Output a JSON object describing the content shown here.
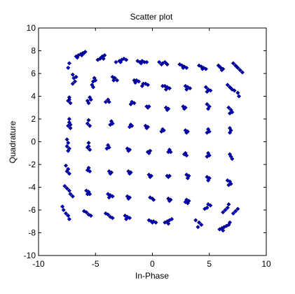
{
  "chart_data": {
    "type": "scatter",
    "title": "Scatter plot",
    "xlabel": "In-Phase",
    "ylabel": "Quadrature",
    "xlim": [
      -10,
      10
    ],
    "ylim": [
      -10,
      10
    ],
    "xticks": [
      -10,
      -5,
      0,
      5,
      10
    ],
    "yticks": [
      -10,
      -8,
      -6,
      -4,
      -2,
      0,
      2,
      4,
      6,
      8,
      10
    ],
    "grid": false,
    "legend": "none",
    "marker": "diamond",
    "marker_color": "#0000CC",
    "marker_edge_color": "#000055",
    "clusters_note_free": true,
    "series": [
      {
        "points": [
          [
            -6.7,
            7.5
          ],
          [
            -6.5,
            7.6
          ],
          [
            -6.3,
            7.7
          ],
          [
            -6.1,
            7.8
          ],
          [
            -5.9,
            7.9
          ],
          [
            -6.6,
            7.4
          ],
          [
            -6.2,
            7.6
          ],
          [
            -6.0,
            7.8
          ],
          [
            -4.8,
            7.2
          ],
          [
            -4.6,
            7.3
          ],
          [
            -4.4,
            7.5
          ],
          [
            -4.2,
            7.6
          ],
          [
            -4.5,
            7.4
          ],
          [
            -4.3,
            7.3
          ],
          [
            -3.2,
            7.0
          ],
          [
            -2.9,
            7.1
          ],
          [
            -2.7,
            7.2
          ],
          [
            -2.5,
            7.3
          ],
          [
            -2.3,
            7.2
          ],
          [
            -2.8,
            7.0
          ],
          [
            -1.3,
            7.1
          ],
          [
            -1.1,
            7.0
          ],
          [
            -0.9,
            7.1
          ],
          [
            -0.7,
            7.0
          ],
          [
            -0.5,
            7.0
          ],
          [
            -1.0,
            6.9
          ],
          [
            0.6,
            7.0
          ],
          [
            0.9,
            6.9
          ],
          [
            1.1,
            7.0
          ],
          [
            1.3,
            6.8
          ],
          [
            0.8,
            6.8
          ],
          [
            1.2,
            6.9
          ],
          [
            2.4,
            6.8
          ],
          [
            2.6,
            6.7
          ],
          [
            2.8,
            6.6
          ],
          [
            3.0,
            6.5
          ],
          [
            2.7,
            6.5
          ],
          [
            4.1,
            6.7
          ],
          [
            4.3,
            6.6
          ],
          [
            4.5,
            6.5
          ],
          [
            4.7,
            6.4
          ],
          [
            4.4,
            6.4
          ],
          [
            5.8,
            6.7
          ],
          [
            6.0,
            6.5
          ],
          [
            6.2,
            6.4
          ],
          [
            6.1,
            6.3
          ],
          [
            5.9,
            6.6
          ],
          [
            7.1,
            6.9
          ],
          [
            7.3,
            6.7
          ],
          [
            7.5,
            6.5
          ],
          [
            7.7,
            6.3
          ],
          [
            7.9,
            6.1
          ],
          [
            7.4,
            6.6
          ],
          [
            -7.3,
            6.9
          ],
          [
            -7.4,
            6.5
          ],
          [
            -7.0,
            5.9
          ],
          [
            -6.9,
            5.6
          ],
          [
            -6.8,
            5.3
          ],
          [
            -7.0,
            5.1
          ],
          [
            -6.7,
            5.7
          ],
          [
            -5.1,
            5.6
          ],
          [
            -5.2,
            5.3
          ],
          [
            -5.3,
            5.0
          ],
          [
            -5.2,
            4.8
          ],
          [
            -5.0,
            5.4
          ],
          [
            -3.5,
            5.7
          ],
          [
            -3.3,
            5.6
          ],
          [
            -3.1,
            5.4
          ],
          [
            -3.4,
            5.4
          ],
          [
            -1.6,
            5.4
          ],
          [
            -1.4,
            5.4
          ],
          [
            -1.2,
            5.3
          ],
          [
            -1.5,
            5.2
          ],
          [
            -0.8,
            5.1
          ],
          [
            -0.6,
            5.1
          ],
          [
            -0.4,
            5.0
          ],
          [
            -0.9,
            4.9
          ],
          [
            0.9,
            4.9
          ],
          [
            1.1,
            4.9
          ],
          [
            1.3,
            4.8
          ],
          [
            1.5,
            4.7
          ],
          [
            1.2,
            4.6
          ],
          [
            2.9,
            4.9
          ],
          [
            3.1,
            4.8
          ],
          [
            3.3,
            4.7
          ],
          [
            3.0,
            4.6
          ],
          [
            4.7,
            4.8
          ],
          [
            4.9,
            4.6
          ],
          [
            5.1,
            4.5
          ],
          [
            4.8,
            4.4
          ],
          [
            6.6,
            5.0
          ],
          [
            6.8,
            4.8
          ],
          [
            7.0,
            4.6
          ],
          [
            7.2,
            4.5
          ],
          [
            6.9,
            4.7
          ],
          [
            7.5,
            4.3
          ],
          [
            7.6,
            4.0
          ],
          [
            -7.3,
            3.9
          ],
          [
            -7.4,
            3.6
          ],
          [
            -7.2,
            3.4
          ],
          [
            -7.3,
            3.7
          ],
          [
            -5.5,
            3.9
          ],
          [
            -5.7,
            3.6
          ],
          [
            -5.6,
            3.4
          ],
          [
            -5.4,
            3.7
          ],
          [
            -3.9,
            3.7
          ],
          [
            -4.1,
            3.5
          ],
          [
            -3.8,
            3.5
          ],
          [
            -1.8,
            3.5
          ],
          [
            -1.6,
            3.4
          ],
          [
            -1.9,
            3.3
          ],
          [
            -0.5,
            3.1
          ],
          [
            -0.3,
            3.1
          ],
          [
            -0.4,
            3.0
          ],
          [
            1.2,
            3.0
          ],
          [
            1.4,
            2.9
          ],
          [
            1.3,
            2.8
          ],
          [
            2.7,
            3.1
          ],
          [
            2.9,
            3.0
          ],
          [
            2.8,
            2.9
          ],
          [
            4.8,
            3.3
          ],
          [
            5.0,
            3.1
          ],
          [
            4.9,
            2.9
          ],
          [
            6.7,
            3.0
          ],
          [
            6.9,
            2.8
          ],
          [
            7.0,
            2.6
          ],
          [
            6.8,
            2.5
          ],
          [
            -7.3,
            2.0
          ],
          [
            -7.3,
            1.7
          ],
          [
            -7.2,
            1.5
          ],
          [
            -7.4,
            1.4
          ],
          [
            -7.2,
            1.2
          ],
          [
            -5.6,
            1.9
          ],
          [
            -5.7,
            1.6
          ],
          [
            -5.5,
            1.4
          ],
          [
            -3.6,
            1.8
          ],
          [
            -3.7,
            1.5
          ],
          [
            -3.5,
            1.6
          ],
          [
            -1.9,
            1.5
          ],
          [
            -1.8,
            1.4
          ],
          [
            -2.0,
            1.3
          ],
          [
            -0.6,
            1.4
          ],
          [
            -0.4,
            1.3
          ],
          [
            -0.5,
            1.2
          ],
          [
            0.9,
            1.1
          ],
          [
            1.0,
            1.0
          ],
          [
            0.8,
            0.9
          ],
          [
            2.9,
            1.0
          ],
          [
            3.0,
            0.8
          ],
          [
            3.1,
            0.9
          ],
          [
            4.9,
            1.1
          ],
          [
            5.0,
            0.9
          ],
          [
            4.8,
            0.8
          ],
          [
            6.8,
            1.2
          ],
          [
            6.9,
            1.0
          ],
          [
            6.8,
            0.8
          ],
          [
            -7.5,
            0.2
          ],
          [
            -7.4,
            -0.1
          ],
          [
            -7.5,
            -0.4
          ],
          [
            -7.3,
            -0.6
          ],
          [
            -7.4,
            -0.8
          ],
          [
            -5.6,
            -0.1
          ],
          [
            -5.6,
            -0.4
          ],
          [
            -5.5,
            -0.7
          ],
          [
            -5.7,
            -0.5
          ],
          [
            -3.9,
            -0.3
          ],
          [
            -3.8,
            -0.5
          ],
          [
            -4.0,
            -0.6
          ],
          [
            -2.2,
            -0.6
          ],
          [
            -2.0,
            -0.7
          ],
          [
            -2.1,
            -0.8
          ],
          [
            -0.4,
            -0.9
          ],
          [
            -0.2,
            -0.8
          ],
          [
            -0.3,
            -1.0
          ],
          [
            1.5,
            -0.7
          ],
          [
            1.6,
            -0.9
          ],
          [
            1.4,
            -0.9
          ],
          [
            2.9,
            -1.0
          ],
          [
            3.0,
            -1.2
          ],
          [
            2.8,
            -1.1
          ],
          [
            4.9,
            -1.0
          ],
          [
            5.0,
            -1.2
          ],
          [
            4.8,
            -1.3
          ],
          [
            6.8,
            -1.1
          ],
          [
            6.9,
            -1.3
          ],
          [
            7.0,
            -1.5
          ],
          [
            -7.6,
            -2.1
          ],
          [
            -7.4,
            -2.4
          ],
          [
            -7.5,
            -2.6
          ],
          [
            -7.3,
            -2.8
          ],
          [
            -5.6,
            -2.3
          ],
          [
            -5.5,
            -2.6
          ],
          [
            -5.7,
            -2.5
          ],
          [
            -3.8,
            -2.6
          ],
          [
            -3.6,
            -2.7
          ],
          [
            -3.7,
            -2.8
          ],
          [
            -2.1,
            -2.6
          ],
          [
            -1.9,
            -2.7
          ],
          [
            -2.0,
            -2.8
          ],
          [
            -0.3,
            -2.9
          ],
          [
            -0.1,
            -3.0
          ],
          [
            -0.2,
            -3.1
          ],
          [
            1.3,
            -3.0
          ],
          [
            1.5,
            -3.0
          ],
          [
            1.4,
            -3.1
          ],
          [
            3.0,
            -2.9
          ],
          [
            3.2,
            -3.0
          ],
          [
            3.1,
            -3.2
          ],
          [
            4.8,
            -3.1
          ],
          [
            5.0,
            -3.2
          ],
          [
            4.9,
            -3.4
          ],
          [
            6.6,
            -3.4
          ],
          [
            6.8,
            -3.5
          ],
          [
            6.9,
            -3.7
          ],
          [
            6.7,
            -3.8
          ],
          [
            -7.7,
            -3.9
          ],
          [
            -7.5,
            -4.1
          ],
          [
            -7.3,
            -4.3
          ],
          [
            -7.2,
            -4.6
          ],
          [
            -7.0,
            -4.8
          ],
          [
            -5.8,
            -4.3
          ],
          [
            -5.6,
            -4.4
          ],
          [
            -5.5,
            -4.6
          ],
          [
            -5.7,
            -4.6
          ],
          [
            -3.9,
            -4.6
          ],
          [
            -3.7,
            -4.7
          ],
          [
            -3.5,
            -4.8
          ],
          [
            -3.8,
            -4.9
          ],
          [
            -2.2,
            -4.8
          ],
          [
            -2.0,
            -4.9
          ],
          [
            -2.1,
            -5.0
          ],
          [
            -0.2,
            -4.9
          ],
          [
            0.0,
            -5.0
          ],
          [
            0.1,
            -5.1
          ],
          [
            1.4,
            -5.0
          ],
          [
            1.6,
            -5.1
          ],
          [
            1.5,
            -5.2
          ],
          [
            3.0,
            -5.1
          ],
          [
            3.2,
            -5.2
          ],
          [
            3.1,
            -5.4
          ],
          [
            2.9,
            -5.3
          ],
          [
            4.9,
            -5.5
          ],
          [
            5.1,
            -5.6
          ],
          [
            4.8,
            -5.8
          ],
          [
            4.6,
            -5.9
          ],
          [
            6.7,
            -5.5
          ],
          [
            6.6,
            -5.8
          ],
          [
            6.4,
            -6.0
          ],
          [
            6.2,
            -6.2
          ],
          [
            -7.9,
            -5.7
          ],
          [
            -7.8,
            -6.0
          ],
          [
            -7.6,
            -6.3
          ],
          [
            -7.4,
            -6.5
          ],
          [
            -7.3,
            -6.8
          ],
          [
            -6.0,
            -6.1
          ],
          [
            -5.8,
            -6.2
          ],
          [
            -5.6,
            -6.4
          ],
          [
            -5.4,
            -6.5
          ],
          [
            -4.1,
            -6.3
          ],
          [
            -3.9,
            -6.4
          ],
          [
            -3.7,
            -6.6
          ],
          [
            -3.5,
            -6.7
          ],
          [
            -2.4,
            -6.5
          ],
          [
            -2.2,
            -6.6
          ],
          [
            -2.0,
            -6.7
          ],
          [
            -2.3,
            -6.8
          ],
          [
            -0.3,
            -6.9
          ],
          [
            -0.1,
            -7.0
          ],
          [
            0.1,
            -7.0
          ],
          [
            0.3,
            -7.1
          ],
          [
            0.0,
            -7.1
          ],
          [
            1.1,
            -7.1
          ],
          [
            1.3,
            -7.0
          ],
          [
            1.5,
            -6.9
          ],
          [
            1.7,
            -6.8
          ],
          [
            1.4,
            -7.2
          ],
          [
            3.8,
            -6.9
          ],
          [
            4.1,
            -7.1
          ],
          [
            4.3,
            -7.3
          ],
          [
            4.0,
            -7.5
          ],
          [
            5.9,
            -7.7
          ],
          [
            6.1,
            -7.6
          ],
          [
            6.3,
            -7.5
          ],
          [
            6.5,
            -7.4
          ],
          [
            6.7,
            -7.3
          ],
          [
            6.2,
            -7.8
          ],
          [
            6.8,
            -7.1
          ],
          [
            7.1,
            -6.3
          ],
          [
            7.3,
            -6.1
          ],
          [
            7.5,
            -5.9
          ]
        ]
      }
    ]
  }
}
